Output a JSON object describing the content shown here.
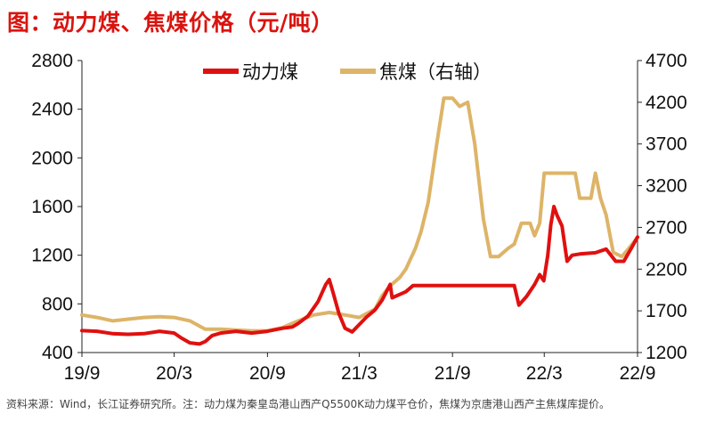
{
  "title": "图：动力煤、焦煤价格（元/吨）",
  "source": "资料来源：Wind，长江证券研究所。注：动力煤为秦皇岛港山西产Q5500K动力煤平仓价，焦煤为京唐港山西产主焦煤库提价。",
  "colors": {
    "title": "#d9140f",
    "thermal": "#e01010",
    "coking": "#ddb468",
    "axis": "#222222"
  },
  "chart_data": {
    "type": "line",
    "title": "图：动力煤、焦煤价格（元/吨）",
    "xlabel": "",
    "ylabel": "",
    "x_ticks": [
      "19/9",
      "20/3",
      "20/9",
      "21/3",
      "21/9",
      "22/3",
      "22/9"
    ],
    "xlim": [
      "2019-09",
      "2022-09"
    ],
    "ylim_left": [
      400,
      2800
    ],
    "ylim_right": [
      1200,
      4700
    ],
    "y_ticks_left": [
      400,
      800,
      1200,
      1600,
      2000,
      2400,
      2800
    ],
    "y_ticks_right": [
      1200,
      1700,
      2200,
      2700,
      3200,
      3700,
      4200,
      4700
    ],
    "grid": false,
    "legend_position": "top-center",
    "series": [
      {
        "name": "动力煤",
        "axis": "left",
        "color": "#e01010",
        "points": [
          [
            "2019-09-01",
            580
          ],
          [
            "2019-10-01",
            575
          ],
          [
            "2019-11-01",
            555
          ],
          [
            "2019-12-01",
            550
          ],
          [
            "2020-01-01",
            555
          ],
          [
            "2020-02-01",
            575
          ],
          [
            "2020-03-01",
            560
          ],
          [
            "2020-03-15",
            520
          ],
          [
            "2020-04-01",
            480
          ],
          [
            "2020-04-20",
            470
          ],
          [
            "2020-05-01",
            490
          ],
          [
            "2020-05-15",
            540
          ],
          [
            "2020-06-01",
            560
          ],
          [
            "2020-07-01",
            575
          ],
          [
            "2020-08-01",
            560
          ],
          [
            "2020-09-01",
            575
          ],
          [
            "2020-10-01",
            600
          ],
          [
            "2020-10-20",
            610
          ],
          [
            "2020-11-01",
            640
          ],
          [
            "2020-11-20",
            700
          ],
          [
            "2020-12-10",
            820
          ],
          [
            "2020-12-25",
            960
          ],
          [
            "2021-01-01",
            1000
          ],
          [
            "2021-01-08",
            900
          ],
          [
            "2021-01-20",
            720
          ],
          [
            "2021-02-01",
            600
          ],
          [
            "2021-02-15",
            570
          ],
          [
            "2021-03-01",
            630
          ],
          [
            "2021-03-15",
            690
          ],
          [
            "2021-04-01",
            750
          ],
          [
            "2021-04-15",
            830
          ],
          [
            "2021-05-01",
            960
          ],
          [
            "2021-05-05",
            850
          ],
          [
            "2021-06-01",
            900
          ],
          [
            "2021-06-15",
            950
          ],
          [
            "2021-07-01",
            950
          ],
          [
            "2021-09-01",
            950
          ],
          [
            "2021-11-01",
            950
          ],
          [
            "2022-01-01",
            950
          ],
          [
            "2022-01-10",
            790
          ],
          [
            "2022-01-25",
            860
          ],
          [
            "2022-02-10",
            960
          ],
          [
            "2022-02-20",
            1040
          ],
          [
            "2022-02-28",
            990
          ],
          [
            "2022-03-08",
            1200
          ],
          [
            "2022-03-14",
            1450
          ],
          [
            "2022-03-20",
            1600
          ],
          [
            "2022-03-26",
            1530
          ],
          [
            "2022-04-05",
            1440
          ],
          [
            "2022-04-15",
            1150
          ],
          [
            "2022-04-25",
            1200
          ],
          [
            "2022-05-10",
            1210
          ],
          [
            "2022-06-10",
            1220
          ],
          [
            "2022-07-01",
            1250
          ],
          [
            "2022-07-20",
            1150
          ],
          [
            "2022-08-05",
            1150
          ],
          [
            "2022-08-20",
            1260
          ],
          [
            "2022-09-01",
            1350
          ]
        ]
      },
      {
        "name": "焦煤（右轴）",
        "axis": "right",
        "color": "#ddb468",
        "points": [
          [
            "2019-09-01",
            1650
          ],
          [
            "2019-10-01",
            1620
          ],
          [
            "2019-11-01",
            1580
          ],
          [
            "2019-12-01",
            1600
          ],
          [
            "2020-01-01",
            1620
          ],
          [
            "2020-02-01",
            1630
          ],
          [
            "2020-03-01",
            1620
          ],
          [
            "2020-04-01",
            1580
          ],
          [
            "2020-05-01",
            1480
          ],
          [
            "2020-06-01",
            1480
          ],
          [
            "2020-07-01",
            1470
          ],
          [
            "2020-08-01",
            1460
          ],
          [
            "2020-09-01",
            1460
          ],
          [
            "2020-10-01",
            1500
          ],
          [
            "2020-11-01",
            1580
          ],
          [
            "2020-12-01",
            1650
          ],
          [
            "2021-01-01",
            1680
          ],
          [
            "2021-02-01",
            1650
          ],
          [
            "2021-03-01",
            1620
          ],
          [
            "2021-04-01",
            1720
          ],
          [
            "2021-04-15",
            1880
          ],
          [
            "2021-05-01",
            2000
          ],
          [
            "2021-05-20",
            2100
          ],
          [
            "2021-06-01",
            2200
          ],
          [
            "2021-06-20",
            2450
          ],
          [
            "2021-07-01",
            2650
          ],
          [
            "2021-07-15",
            3000
          ],
          [
            "2021-08-01",
            3700
          ],
          [
            "2021-08-15",
            4250
          ],
          [
            "2021-09-01",
            4250
          ],
          [
            "2021-09-15",
            4150
          ],
          [
            "2021-10-01",
            4200
          ],
          [
            "2021-10-15",
            3700
          ],
          [
            "2021-11-01",
            2800
          ],
          [
            "2021-11-15",
            2350
          ],
          [
            "2021-12-01",
            2350
          ],
          [
            "2021-12-20",
            2450
          ],
          [
            "2022-01-01",
            2500
          ],
          [
            "2022-01-15",
            2750
          ],
          [
            "2022-02-01",
            2750
          ],
          [
            "2022-02-10",
            2600
          ],
          [
            "2022-02-20",
            2750
          ],
          [
            "2022-03-01",
            3350
          ],
          [
            "2022-05-01",
            3350
          ],
          [
            "2022-05-10",
            3050
          ],
          [
            "2022-06-01",
            3050
          ],
          [
            "2022-06-10",
            3350
          ],
          [
            "2022-06-20",
            3050
          ],
          [
            "2022-07-01",
            2850
          ],
          [
            "2022-07-15",
            2400
          ],
          [
            "2022-08-01",
            2350
          ],
          [
            "2022-08-15",
            2450
          ],
          [
            "2022-09-01",
            2580
          ]
        ]
      }
    ]
  }
}
